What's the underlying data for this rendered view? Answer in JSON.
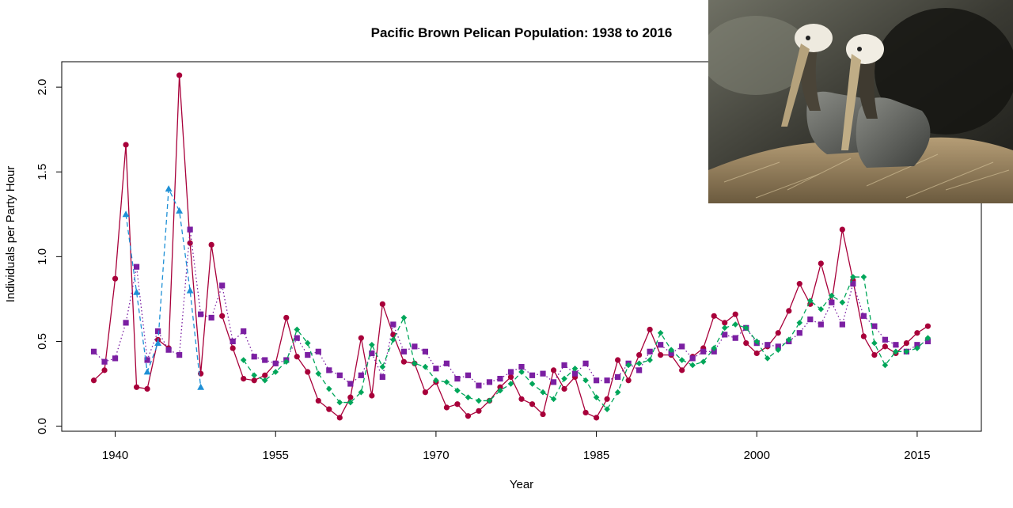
{
  "chart_data": {
    "type": "line",
    "title": "Pacific Brown Pelican Population: 1938 to 2016",
    "xlabel": "Year",
    "ylabel": "Individuals per Party Hour",
    "xlim": [
      1935,
      2021
    ],
    "ylim": [
      -0.03,
      2.15
    ],
    "xticks": [
      1940,
      1955,
      1970,
      1985,
      2000,
      2015
    ],
    "yticks": [
      0.0,
      0.5,
      1.0,
      1.5,
      2.0
    ],
    "ytick_labels": [
      "0.0",
      "0.5",
      "1.0",
      "1.5",
      "2.0"
    ],
    "grid": false,
    "legend": "none",
    "series": [
      {
        "color": "#a8003a",
        "marker": "circle",
        "line": "solid",
        "points": [
          [
            1938,
            0.27
          ],
          [
            1939,
            0.33
          ],
          [
            1940,
            0.87
          ],
          [
            1941,
            1.66
          ],
          [
            1942,
            0.23
          ],
          [
            1943,
            0.22
          ],
          [
            1944,
            0.51
          ],
          [
            1945,
            0.46
          ],
          [
            1946,
            2.07
          ],
          [
            1947,
            1.08
          ],
          [
            1948,
            0.31
          ],
          [
            1949,
            1.07
          ],
          [
            1950,
            0.65
          ],
          [
            1951,
            0.46
          ],
          [
            1952,
            0.28
          ],
          [
            1953,
            0.27
          ],
          [
            1954,
            0.3
          ],
          [
            1955,
            0.37
          ],
          [
            1956,
            0.64
          ],
          [
            1957,
            0.41
          ],
          [
            1958,
            0.32
          ],
          [
            1959,
            0.15
          ],
          [
            1960,
            0.1
          ],
          [
            1961,
            0.05
          ],
          [
            1962,
            0.17
          ],
          [
            1963,
            0.52
          ],
          [
            1964,
            0.18
          ],
          [
            1965,
            0.72
          ],
          [
            1966,
            0.54
          ],
          [
            1967,
            0.38
          ],
          [
            1968,
            0.37
          ],
          [
            1969,
            0.2
          ],
          [
            1970,
            0.26
          ],
          [
            1971,
            0.11
          ],
          [
            1972,
            0.13
          ],
          [
            1973,
            0.06
          ],
          [
            1974,
            0.09
          ],
          [
            1975,
            0.15
          ],
          [
            1976,
            0.23
          ],
          [
            1977,
            0.29
          ],
          [
            1978,
            0.16
          ],
          [
            1979,
            0.13
          ],
          [
            1980,
            0.07
          ],
          [
            1981,
            0.33
          ],
          [
            1982,
            0.22
          ],
          [
            1983,
            0.29
          ],
          [
            1984,
            0.08
          ],
          [
            1985,
            0.05
          ],
          [
            1986,
            0.16
          ],
          [
            1987,
            0.39
          ],
          [
            1988,
            0.27
          ],
          [
            1989,
            0.42
          ],
          [
            1990,
            0.57
          ],
          [
            1991,
            0.42
          ],
          [
            1992,
            0.42
          ],
          [
            1993,
            0.33
          ],
          [
            1994,
            0.41
          ],
          [
            1995,
            0.46
          ],
          [
            1996,
            0.65
          ],
          [
            1997,
            0.61
          ],
          [
            1998,
            0.66
          ],
          [
            1999,
            0.49
          ],
          [
            2000,
            0.43
          ],
          [
            2001,
            0.47
          ],
          [
            2002,
            0.55
          ],
          [
            2003,
            0.68
          ],
          [
            2004,
            0.84
          ],
          [
            2005,
            0.72
          ],
          [
            2006,
            0.96
          ],
          [
            2007,
            0.73
          ],
          [
            2008,
            1.16
          ],
          [
            2009,
            0.86
          ],
          [
            2010,
            0.53
          ],
          [
            2011,
            0.42
          ],
          [
            2012,
            0.47
          ],
          [
            2013,
            0.43
          ],
          [
            2014,
            0.49
          ],
          [
            2015,
            0.55
          ],
          [
            2016,
            0.59
          ]
        ]
      },
      {
        "color": "#7b1fa2",
        "marker": "square",
        "line": "dotted",
        "points": [
          [
            1938,
            0.44
          ],
          [
            1939,
            0.38
          ],
          [
            1940,
            0.4
          ],
          [
            1941,
            0.61
          ],
          [
            1942,
            0.94
          ],
          [
            1943,
            0.39
          ],
          [
            1944,
            0.56
          ],
          [
            1945,
            0.45
          ],
          [
            1946,
            0.42
          ],
          [
            1947,
            1.16
          ],
          [
            1948,
            0.66
          ],
          [
            1949,
            0.64
          ],
          [
            1950,
            0.83
          ],
          [
            1951,
            0.5
          ],
          [
            1952,
            0.56
          ],
          [
            1953,
            0.41
          ],
          [
            1954,
            0.39
          ],
          [
            1955,
            0.37
          ],
          [
            1956,
            0.39
          ],
          [
            1957,
            0.52
          ],
          [
            1958,
            0.42
          ],
          [
            1959,
            0.44
          ],
          [
            1960,
            0.33
          ],
          [
            1961,
            0.3
          ],
          [
            1962,
            0.25
          ],
          [
            1963,
            0.3
          ],
          [
            1964,
            0.43
          ],
          [
            1965,
            0.29
          ],
          [
            1966,
            0.6
          ],
          [
            1967,
            0.44
          ],
          [
            1968,
            0.47
          ],
          [
            1969,
            0.44
          ],
          [
            1970,
            0.34
          ],
          [
            1971,
            0.37
          ],
          [
            1972,
            0.28
          ],
          [
            1973,
            0.3
          ],
          [
            1974,
            0.24
          ],
          [
            1975,
            0.26
          ],
          [
            1976,
            0.28
          ],
          [
            1977,
            0.32
          ],
          [
            1978,
            0.35
          ],
          [
            1979,
            0.3
          ],
          [
            1980,
            0.31
          ],
          [
            1981,
            0.26
          ],
          [
            1982,
            0.36
          ],
          [
            1983,
            0.31
          ],
          [
            1984,
            0.37
          ],
          [
            1985,
            0.27
          ],
          [
            1986,
            0.27
          ],
          [
            1987,
            0.29
          ],
          [
            1988,
            0.37
          ],
          [
            1989,
            0.33
          ],
          [
            1990,
            0.44
          ],
          [
            1991,
            0.48
          ],
          [
            1992,
            0.43
          ],
          [
            1993,
            0.47
          ],
          [
            1994,
            0.4
          ],
          [
            1995,
            0.44
          ],
          [
            1996,
            0.44
          ],
          [
            1997,
            0.54
          ],
          [
            1998,
            0.52
          ],
          [
            1999,
            0.58
          ],
          [
            2000,
            0.49
          ],
          [
            2001,
            0.48
          ],
          [
            2002,
            0.47
          ],
          [
            2003,
            0.5
          ],
          [
            2004,
            0.55
          ],
          [
            2005,
            0.63
          ],
          [
            2006,
            0.6
          ],
          [
            2007,
            0.73
          ],
          [
            2008,
            0.6
          ],
          [
            2009,
            0.84
          ],
          [
            2010,
            0.65
          ],
          [
            2011,
            0.59
          ],
          [
            2012,
            0.51
          ],
          [
            2013,
            0.48
          ],
          [
            2014,
            0.44
          ],
          [
            2015,
            0.48
          ],
          [
            2016,
            0.5
          ]
        ]
      },
      {
        "color": "#00a65a",
        "marker": "diamond",
        "line": "dashed",
        "points": [
          [
            1952,
            0.39
          ],
          [
            1953,
            0.3
          ],
          [
            1954,
            0.27
          ],
          [
            1955,
            0.32
          ],
          [
            1956,
            0.38
          ],
          [
            1957,
            0.57
          ],
          [
            1958,
            0.49
          ],
          [
            1959,
            0.31
          ],
          [
            1960,
            0.22
          ],
          [
            1961,
            0.14
          ],
          [
            1962,
            0.14
          ],
          [
            1963,
            0.2
          ],
          [
            1964,
            0.48
          ],
          [
            1965,
            0.35
          ],
          [
            1966,
            0.51
          ],
          [
            1967,
            0.64
          ],
          [
            1968,
            0.37
          ],
          [
            1969,
            0.35
          ],
          [
            1970,
            0.27
          ],
          [
            1971,
            0.26
          ],
          [
            1972,
            0.21
          ],
          [
            1973,
            0.17
          ],
          [
            1974,
            0.15
          ],
          [
            1975,
            0.15
          ],
          [
            1976,
            0.21
          ],
          [
            1977,
            0.25
          ],
          [
            1978,
            0.32
          ],
          [
            1979,
            0.25
          ],
          [
            1980,
            0.2
          ],
          [
            1981,
            0.16
          ],
          [
            1982,
            0.28
          ],
          [
            1983,
            0.34
          ],
          [
            1984,
            0.27
          ],
          [
            1985,
            0.17
          ],
          [
            1986,
            0.1
          ],
          [
            1987,
            0.2
          ],
          [
            1988,
            0.36
          ],
          [
            1989,
            0.37
          ],
          [
            1990,
            0.39
          ],
          [
            1991,
            0.55
          ],
          [
            1992,
            0.45
          ],
          [
            1993,
            0.39
          ],
          [
            1994,
            0.36
          ],
          [
            1995,
            0.38
          ],
          [
            1996,
            0.46
          ],
          [
            1997,
            0.58
          ],
          [
            1998,
            0.6
          ],
          [
            1999,
            0.58
          ],
          [
            2000,
            0.5
          ],
          [
            2001,
            0.4
          ],
          [
            2002,
            0.45
          ],
          [
            2003,
            0.51
          ],
          [
            2004,
            0.61
          ],
          [
            2005,
            0.74
          ],
          [
            2006,
            0.69
          ],
          [
            2007,
            0.77
          ],
          [
            2008,
            0.73
          ],
          [
            2009,
            0.88
          ],
          [
            2010,
            0.88
          ],
          [
            2011,
            0.49
          ],
          [
            2012,
            0.36
          ],
          [
            2013,
            0.44
          ],
          [
            2014,
            0.44
          ],
          [
            2015,
            0.46
          ],
          [
            2016,
            0.52
          ]
        ]
      },
      {
        "color": "#1e90d6",
        "marker": "triangle",
        "line": "dashed",
        "points": [
          [
            1941,
            1.25
          ],
          [
            1942,
            0.79
          ],
          [
            1943,
            0.32
          ],
          [
            1944,
            0.49
          ],
          [
            1945,
            1.4
          ],
          [
            1946,
            1.27
          ],
          [
            1947,
            0.8
          ],
          [
            1948,
            0.23
          ]
        ]
      }
    ]
  },
  "photo": {
    "subject": "two-brown-pelicans"
  }
}
